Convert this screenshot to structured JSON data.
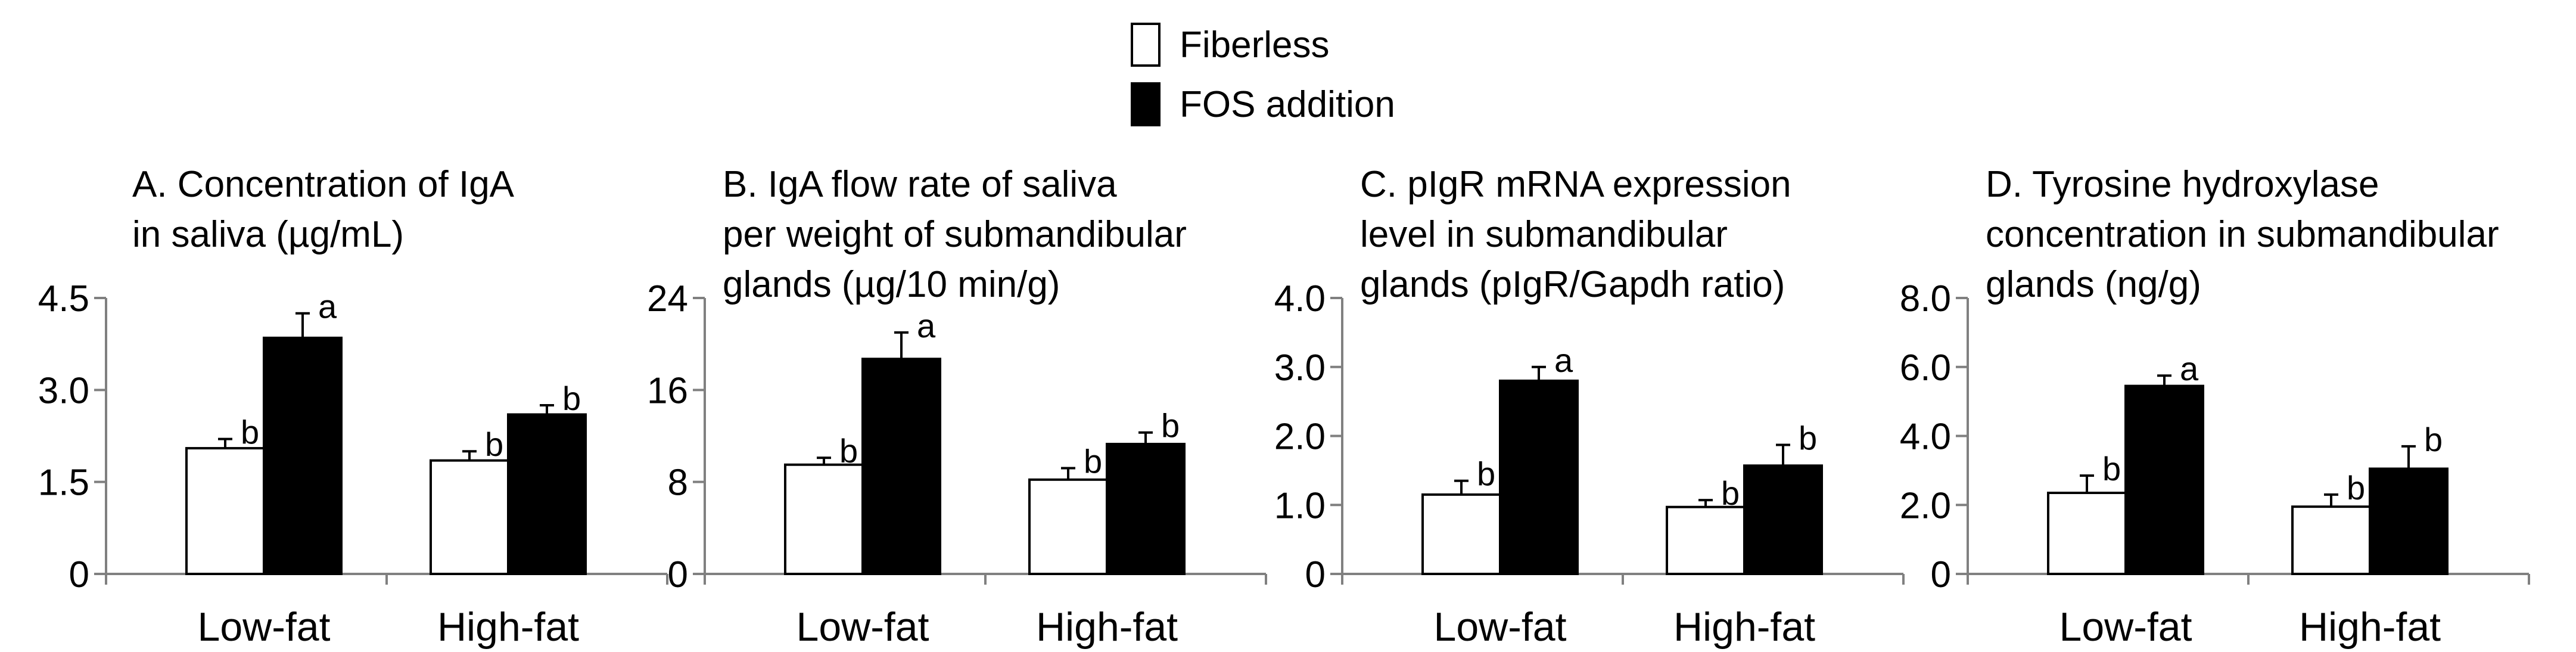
{
  "legend": {
    "items": [
      {
        "label": "Fiberless",
        "color": "#ffffff"
      },
      {
        "label": "FOS addition",
        "color": "#000000"
      }
    ]
  },
  "chart_data": [
    {
      "type": "bar",
      "title_lines": [
        "A. Concentration of IgA",
        "in saliva (µg/mL)"
      ],
      "categories": [
        "Low-fat",
        "High-fat"
      ],
      "ylim": [
        0,
        4.5
      ],
      "yticks": [
        "0",
        "1.5",
        "3.0",
        "4.5"
      ],
      "series": [
        {
          "name": "Fiberless",
          "values": [
            2.05,
            1.85
          ],
          "errors": [
            0.15,
            0.15
          ],
          "labels": [
            "b",
            "b"
          ]
        },
        {
          "name": "FOS addition",
          "values": [
            3.85,
            2.6
          ],
          "errors": [
            0.4,
            0.15
          ],
          "labels": [
            "a",
            "b"
          ]
        }
      ]
    },
    {
      "type": "bar",
      "title_lines": [
        "B. IgA flow rate of saliva",
        "per weight of submandibular",
        "glands (µg/10 min/g)"
      ],
      "categories": [
        "Low-fat",
        "High-fat"
      ],
      "ylim": [
        0,
        24
      ],
      "yticks": [
        "0",
        "8",
        "16",
        "24"
      ],
      "series": [
        {
          "name": "Fiberless",
          "values": [
            9.5,
            8.2
          ],
          "errors": [
            0.6,
            1.0
          ],
          "labels": [
            "b",
            "b"
          ]
        },
        {
          "name": "FOS addition",
          "values": [
            18.7,
            11.3
          ],
          "errors": [
            2.3,
            1.0
          ],
          "labels": [
            "a",
            "b"
          ]
        }
      ]
    },
    {
      "type": "bar",
      "title_lines": [
        "C. pIgR mRNA expression",
        "level in submandibular",
        "glands (pIgR/Gapdh ratio)"
      ],
      "categories": [
        "Low-fat",
        "High-fat"
      ],
      "ylim": [
        0,
        4.0
      ],
      "yticks": [
        "0",
        "1.0",
        "2.0",
        "3.0",
        "4.0"
      ],
      "series": [
        {
          "name": "Fiberless",
          "values": [
            1.15,
            0.97
          ],
          "errors": [
            0.2,
            0.1
          ],
          "labels": [
            "b",
            "b"
          ]
        },
        {
          "name": "FOS addition",
          "values": [
            2.8,
            1.57
          ],
          "errors": [
            0.2,
            0.3
          ],
          "labels": [
            "a",
            "b"
          ]
        }
      ]
    },
    {
      "type": "bar",
      "title_lines": [
        "D. Tyrosine hydroxylase",
        "concentration in submandibular",
        "glands (ng/g)"
      ],
      "categories": [
        "Low-fat",
        "High-fat"
      ],
      "ylim": [
        0,
        8.0
      ],
      "yticks": [
        "0",
        "2.0",
        "4.0",
        "6.0",
        "8.0"
      ],
      "series": [
        {
          "name": "Fiberless",
          "values": [
            2.35,
            1.95
          ],
          "errors": [
            0.5,
            0.35
          ],
          "labels": [
            "b",
            "b"
          ]
        },
        {
          "name": "FOS addition",
          "values": [
            5.45,
            3.05
          ],
          "errors": [
            0.3,
            0.65
          ],
          "labels": [
            "a",
            "b"
          ]
        }
      ]
    }
  ]
}
